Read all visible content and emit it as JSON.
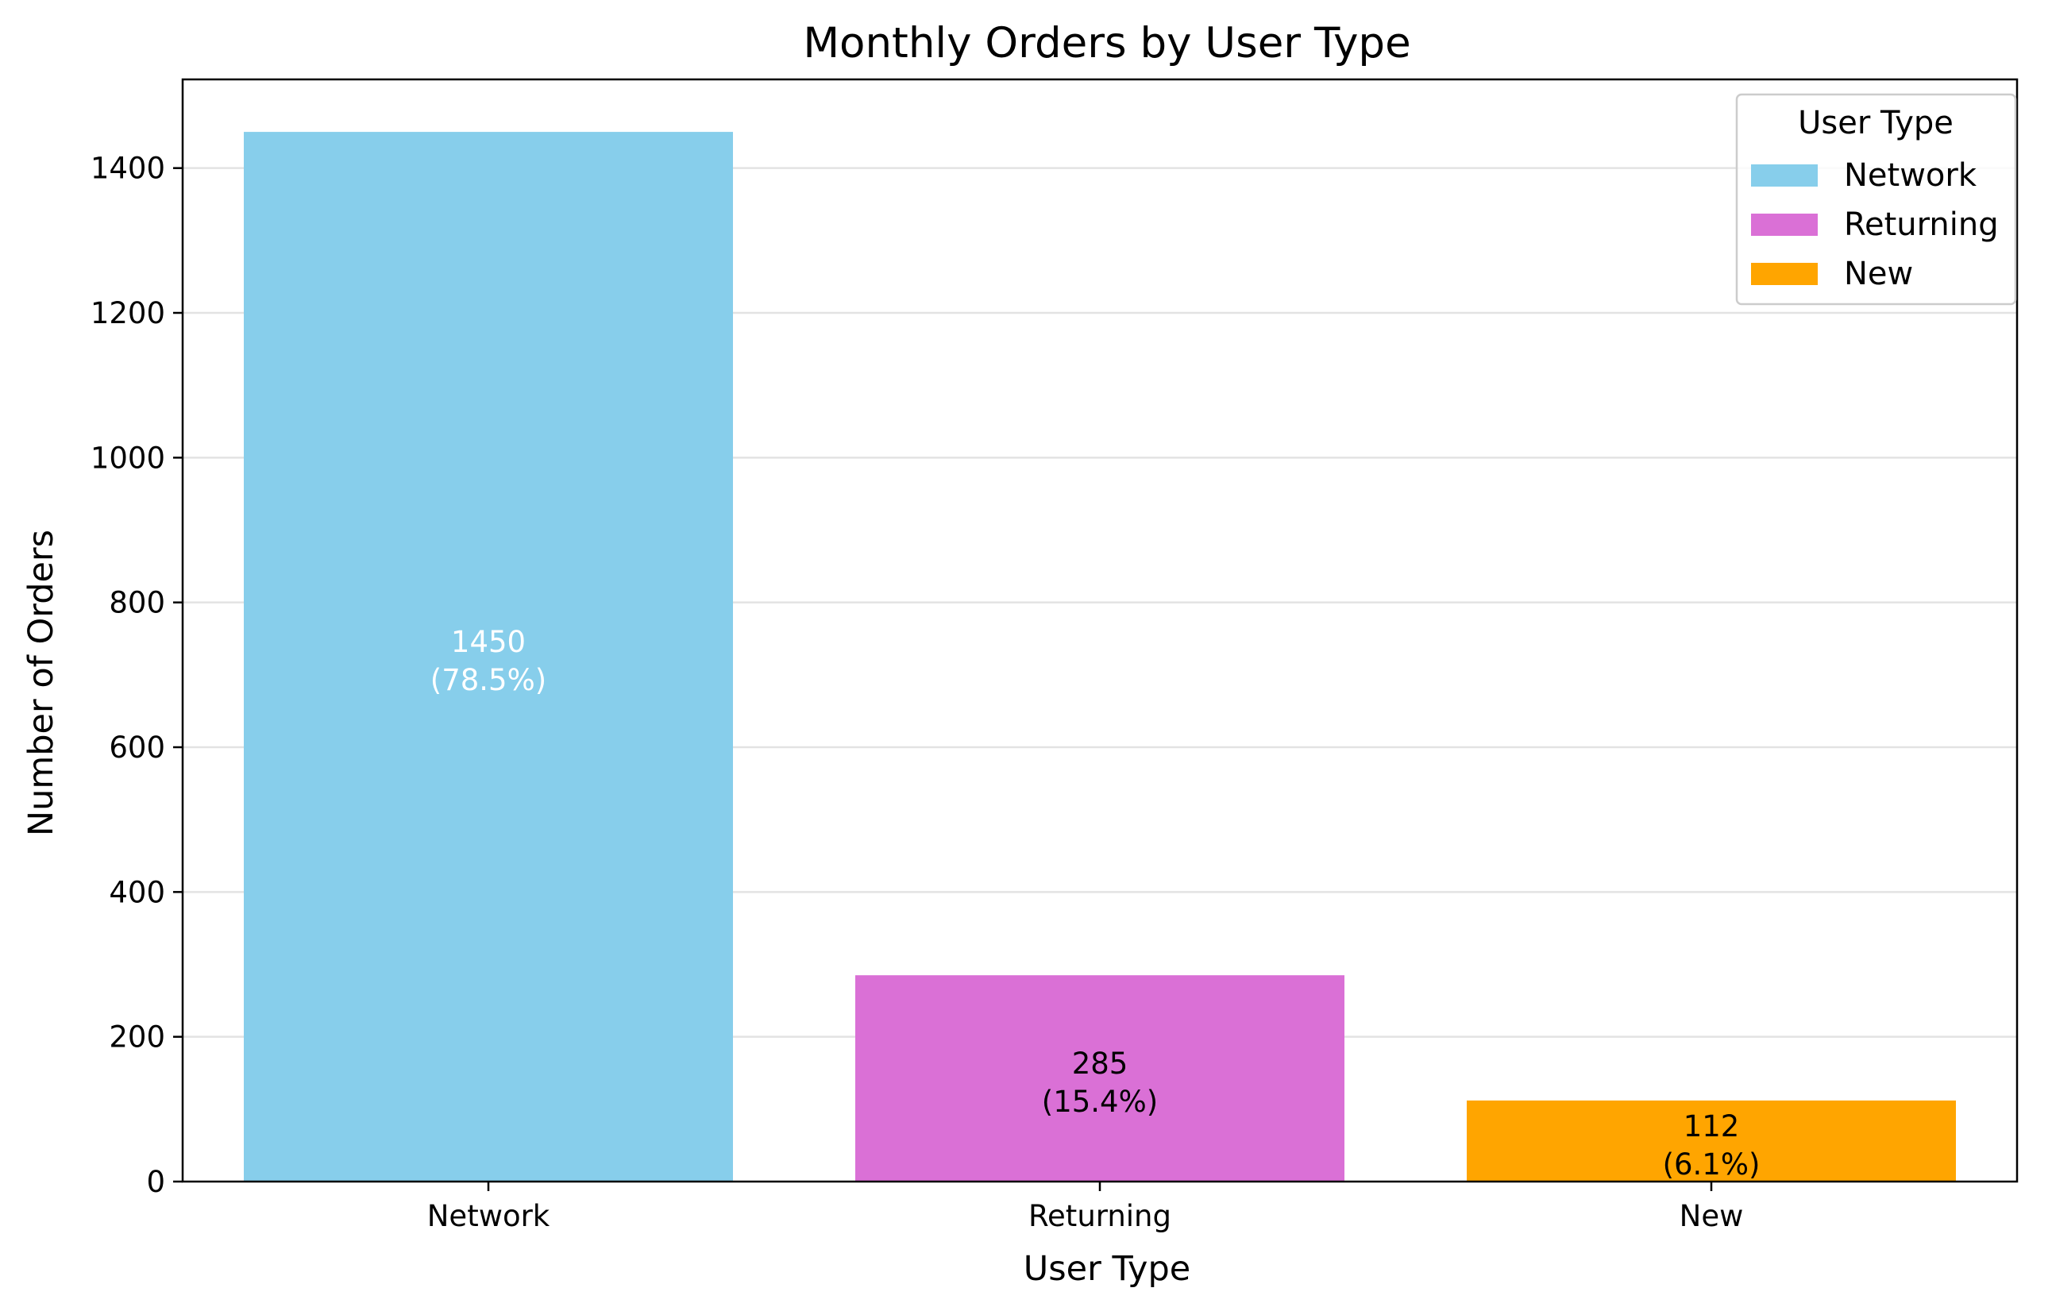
{
  "chart_data": {
    "type": "bar",
    "title": "Monthly Orders by User Type",
    "xlabel": "User Type",
    "ylabel": "Number of Orders",
    "categories": [
      "Network",
      "Returning",
      "New"
    ],
    "values": [
      1450,
      285,
      112
    ],
    "value_labels": [
      "1450",
      "285",
      "112"
    ],
    "percent_labels": [
      "(78.5%)",
      "(15.4%)",
      "(6.1%)"
    ],
    "colors": [
      "#87CEEB",
      "#DA70D6",
      "#FFA500"
    ],
    "label_colors": [
      "#ffffff",
      "#000000",
      "#000000"
    ],
    "ylim": [
      0,
      1522.5
    ],
    "yticks": [
      0,
      200,
      400,
      600,
      800,
      1000,
      1200,
      1400
    ],
    "grid": "y",
    "legend": {
      "title": "User Type",
      "placement": "top-right",
      "entries": [
        "Network",
        "Returning",
        "New"
      ]
    }
  }
}
